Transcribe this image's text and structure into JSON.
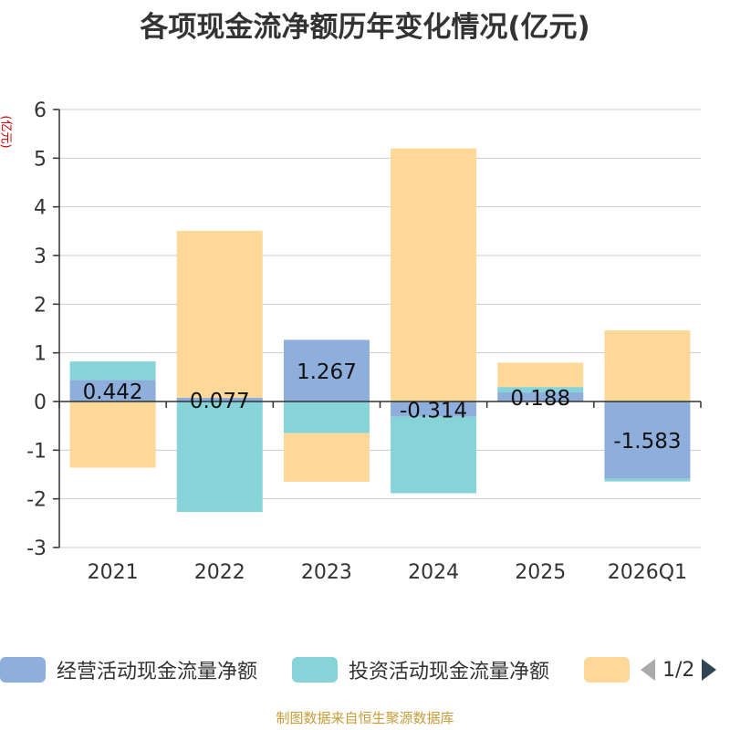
{
  "title": "各项现金流净额历年变化情况(亿元)",
  "y_unit": "(亿元)",
  "colors": {
    "operating": "#8eaedb",
    "investing": "#86d4d8",
    "financing": "#fdd898",
    "axis": "#333333",
    "grid": "#cccccc"
  },
  "legend": {
    "items": [
      {
        "label": "经营活动现金流量净额",
        "color": "#8eaedb"
      },
      {
        "label": "投资活动现金流量净额",
        "color": "#86d4d8"
      },
      {
        "label": "",
        "color": "#fdd898"
      }
    ],
    "page": "1/2",
    "prev_icon": "triangle-left-icon",
    "next_icon": "triangle-right-icon"
  },
  "footer": "制图数据来自恒生聚源数据库",
  "chart_data": {
    "type": "bar",
    "stacked": true,
    "categories": [
      "2021",
      "2022",
      "2023",
      "2024",
      "2025",
      "2026Q1"
    ],
    "ylim": [
      -3,
      6
    ],
    "yticks": [
      -3,
      -2,
      -1,
      0,
      1,
      2,
      3,
      4,
      5,
      6
    ],
    "grid": true,
    "legend_position": "bottom",
    "series": [
      {
        "name": "经营活动现金流量净额",
        "values": [
          0.442,
          0.077,
          1.267,
          -0.314,
          0.188,
          -1.583
        ],
        "labels": [
          "0.442",
          "0.077",
          "1.267",
          "-0.314",
          "0.188",
          "-1.583"
        ]
      },
      {
        "name": "投资活动现金流量净额",
        "values": [
          0.38,
          -2.27,
          -0.65,
          -1.57,
          0.11,
          -0.06
        ]
      },
      {
        "name": "",
        "values": [
          -1.36,
          3.43,
          -1.0,
          5.2,
          0.5,
          1.46
        ]
      }
    ]
  }
}
